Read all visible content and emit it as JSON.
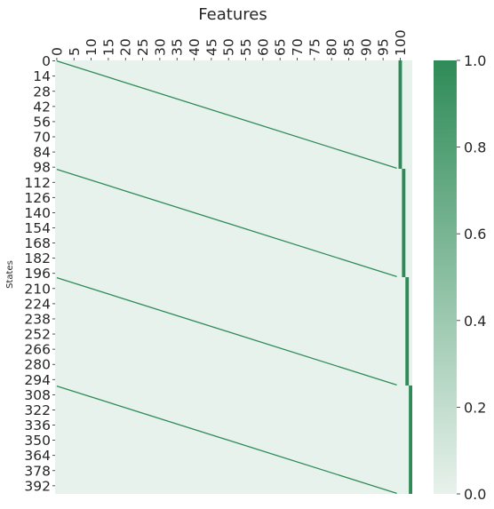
{
  "chart_data": {
    "type": "heatmap",
    "title": "Features",
    "xlabel": "",
    "ylabel": "States",
    "n_rows": 400,
    "n_cols": 104,
    "x_tick_labels": [
      "0",
      "5",
      "10",
      "15",
      "20",
      "25",
      "30",
      "35",
      "40",
      "45",
      "50",
      "55",
      "60",
      "65",
      "70",
      "75",
      "80",
      "85",
      "90",
      "95",
      "100"
    ],
    "x_tick_values": [
      0,
      5,
      10,
      15,
      20,
      25,
      30,
      35,
      40,
      45,
      50,
      55,
      60,
      65,
      70,
      75,
      80,
      85,
      90,
      95,
      100
    ],
    "y_tick_labels": [
      "0",
      "14",
      "28",
      "42",
      "56",
      "70",
      "84",
      "98",
      "112",
      "126",
      "140",
      "154",
      "168",
      "182",
      "196",
      "210",
      "224",
      "238",
      "252",
      "266",
      "280",
      "294",
      "308",
      "322",
      "336",
      "350",
      "364",
      "378",
      "392"
    ],
    "y_tick_values": [
      0,
      14,
      28,
      42,
      56,
      70,
      84,
      98,
      112,
      126,
      140,
      154,
      168,
      182,
      196,
      210,
      224,
      238,
      252,
      266,
      280,
      294,
      308,
      322,
      336,
      350,
      364,
      378,
      392
    ],
    "value_range": [
      0.0,
      1.0
    ],
    "colormap": {
      "low": "#e8f2ec",
      "high": "#2e8b57"
    },
    "colorbar_ticks": [
      "0.0",
      "0.2",
      "0.4",
      "0.6",
      "0.8",
      "1.0"
    ],
    "colorbar_values": [
      0.0,
      0.2,
      0.4,
      0.6,
      0.8,
      1.0
    ],
    "pattern": {
      "description_values": "one-hot state encoding: cell (row, col) = 1 when col == row mod 100, plus a block-indicator column 100 + floor(row / 100); all other cells 0",
      "diagonal_blocks": [
        {
          "rows": [
            0,
            99
          ],
          "diagonal_cols": [
            0,
            99
          ],
          "indicator_col": 100
        },
        {
          "rows": [
            100,
            199
          ],
          "diagonal_cols": [
            0,
            99
          ],
          "indicator_col": 101
        },
        {
          "rows": [
            200,
            299
          ],
          "diagonal_cols": [
            0,
            99
          ],
          "indicator_col": 102
        },
        {
          "rows": [
            300,
            399
          ],
          "diagonal_cols": [
            0,
            99
          ],
          "indicator_col": 103
        }
      ]
    }
  }
}
